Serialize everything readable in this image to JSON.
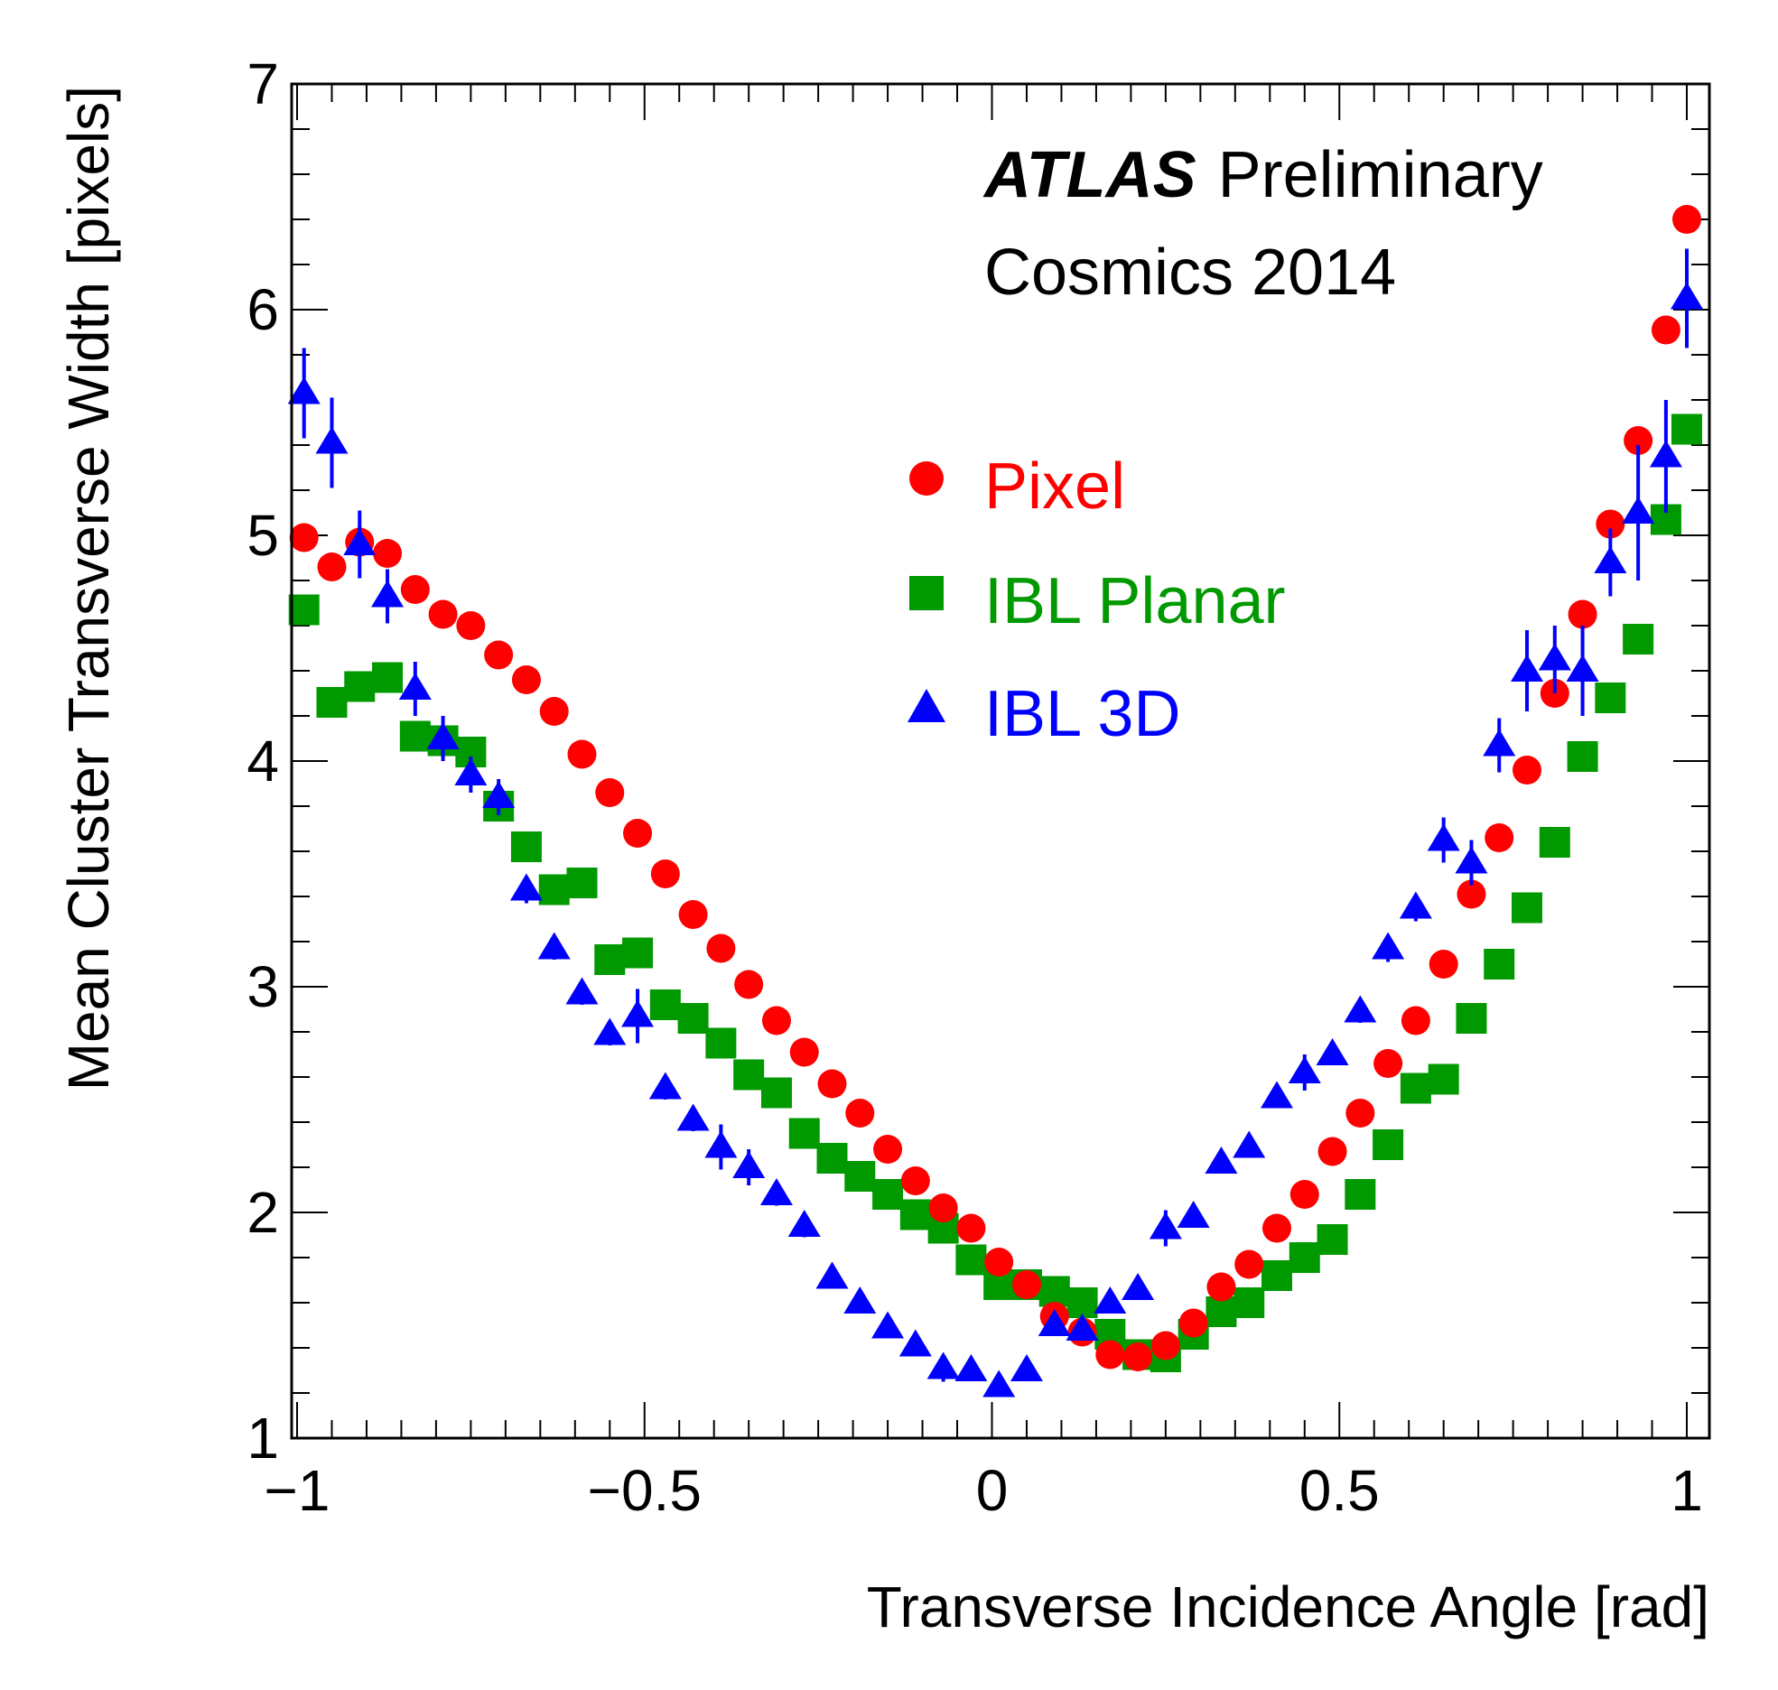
{
  "chart_data": {
    "type": "scatter",
    "xlabel": "Transverse Incidence Angle [rad]",
    "ylabel": "Mean Cluster Transverse Width [pixels]",
    "xlim": [
      -1.0,
      1.0
    ],
    "ylim": [
      1,
      7
    ],
    "x_ticks": [
      -1,
      -0.5,
      0,
      0.5,
      1
    ],
    "x_tick_labels": [
      "−1",
      "−0.5",
      "0",
      "0.5",
      "1"
    ],
    "y_ticks": [
      1,
      2,
      3,
      4,
      5,
      6,
      7
    ],
    "y_tick_labels": [
      "1",
      "2",
      "3",
      "4",
      "5",
      "6",
      "7"
    ],
    "annotation": {
      "experiment": "ATLAS",
      "status": "Preliminary",
      "dataset": "Cosmics 2014"
    },
    "legend_position": "right, upper middle",
    "grid": false,
    "series": [
      {
        "name": "Pixel",
        "marker": "circle",
        "color": "#ff0000",
        "points": [
          [
            -0.99,
            4.99
          ],
          [
            -0.95,
            4.86
          ],
          [
            -0.91,
            4.97
          ],
          [
            -0.87,
            4.92
          ],
          [
            -0.83,
            4.76
          ],
          [
            -0.79,
            4.65
          ],
          [
            -0.75,
            4.6
          ],
          [
            -0.71,
            4.47
          ],
          [
            -0.67,
            4.36
          ],
          [
            -0.63,
            4.22
          ],
          [
            -0.59,
            4.03
          ],
          [
            -0.55,
            3.86
          ],
          [
            -0.51,
            3.68
          ],
          [
            -0.47,
            3.5
          ],
          [
            -0.43,
            3.32
          ],
          [
            -0.39,
            3.17
          ],
          [
            -0.35,
            3.01
          ],
          [
            -0.31,
            2.85
          ],
          [
            -0.27,
            2.71
          ],
          [
            -0.23,
            2.57
          ],
          [
            -0.19,
            2.44
          ],
          [
            -0.15,
            2.28
          ],
          [
            -0.11,
            2.14
          ],
          [
            -0.07,
            2.02
          ],
          [
            -0.03,
            1.93
          ],
          [
            0.01,
            1.78
          ],
          [
            0.05,
            1.68
          ],
          [
            0.09,
            1.54
          ],
          [
            0.13,
            1.47
          ],
          [
            0.17,
            1.37
          ],
          [
            0.21,
            1.36
          ],
          [
            0.25,
            1.41
          ],
          [
            0.29,
            1.51
          ],
          [
            0.33,
            1.67
          ],
          [
            0.37,
            1.77
          ],
          [
            0.41,
            1.93
          ],
          [
            0.45,
            2.08
          ],
          [
            0.49,
            2.27
          ],
          [
            0.53,
            2.44
          ],
          [
            0.57,
            2.66
          ],
          [
            0.61,
            2.85
          ],
          [
            0.65,
            3.1
          ],
          [
            0.69,
            3.41
          ],
          [
            0.73,
            3.66
          ],
          [
            0.77,
            3.96
          ],
          [
            0.81,
            4.3
          ],
          [
            0.85,
            4.65
          ],
          [
            0.89,
            5.05
          ],
          [
            0.93,
            5.42
          ],
          [
            0.97,
            5.91
          ],
          [
            1.0,
            6.4
          ]
        ]
      },
      {
        "name": "IBL Planar",
        "marker": "square",
        "color": "#009900",
        "points": [
          [
            -0.99,
            4.67
          ],
          [
            -0.95,
            4.26
          ],
          [
            -0.91,
            4.33
          ],
          [
            -0.87,
            4.37
          ],
          [
            -0.83,
            4.11
          ],
          [
            -0.79,
            4.09
          ],
          [
            -0.75,
            4.04
          ],
          [
            -0.71,
            3.8
          ],
          [
            -0.67,
            3.62
          ],
          [
            -0.63,
            3.43
          ],
          [
            -0.59,
            3.46
          ],
          [
            -0.55,
            3.12
          ],
          [
            -0.51,
            3.15
          ],
          [
            -0.47,
            2.92
          ],
          [
            -0.43,
            2.86
          ],
          [
            -0.39,
            2.75
          ],
          [
            -0.35,
            2.61
          ],
          [
            -0.31,
            2.53
          ],
          [
            -0.27,
            2.35
          ],
          [
            -0.23,
            2.24
          ],
          [
            -0.19,
            2.16
          ],
          [
            -0.15,
            2.08
          ],
          [
            -0.11,
            1.99
          ],
          [
            -0.07,
            1.93
          ],
          [
            -0.03,
            1.79
          ],
          [
            0.01,
            1.68
          ],
          [
            0.05,
            1.68
          ],
          [
            0.09,
            1.65
          ],
          [
            0.13,
            1.6
          ],
          [
            0.17,
            1.46
          ],
          [
            0.21,
            1.37
          ],
          [
            0.25,
            1.36
          ],
          [
            0.29,
            1.46
          ],
          [
            0.33,
            1.56
          ],
          [
            0.37,
            1.6
          ],
          [
            0.41,
            1.72
          ],
          [
            0.45,
            1.8
          ],
          [
            0.49,
            1.88
          ],
          [
            0.53,
            2.08
          ],
          [
            0.57,
            2.3
          ],
          [
            0.61,
            2.55
          ],
          [
            0.65,
            2.59
          ],
          [
            0.69,
            2.86
          ],
          [
            0.73,
            3.1
          ],
          [
            0.77,
            3.35
          ],
          [
            0.81,
            3.64
          ],
          [
            0.85,
            4.02
          ],
          [
            0.89,
            4.28
          ],
          [
            0.93,
            4.54
          ],
          [
            0.97,
            5.07
          ],
          [
            1.0,
            5.47
          ]
        ]
      },
      {
        "name": "IBL 3D",
        "marker": "triangle",
        "color": "#0000ff",
        "points": [
          [
            -0.99,
            5.63
          ],
          [
            -0.95,
            5.41
          ],
          [
            -0.91,
            4.96
          ],
          [
            -0.87,
            4.73
          ],
          [
            -0.83,
            4.32
          ],
          [
            -0.79,
            4.1
          ],
          [
            -0.75,
            3.94
          ],
          [
            -0.71,
            3.84
          ],
          [
            -0.67,
            3.43
          ],
          [
            -0.63,
            3.17
          ],
          [
            -0.59,
            2.97
          ],
          [
            -0.55,
            2.79
          ],
          [
            -0.51,
            2.87
          ],
          [
            -0.47,
            2.55
          ],
          [
            -0.43,
            2.41
          ],
          [
            -0.39,
            2.29
          ],
          [
            -0.35,
            2.2
          ],
          [
            -0.31,
            2.08
          ],
          [
            -0.27,
            1.94
          ],
          [
            -0.23,
            1.71
          ],
          [
            -0.19,
            1.6
          ],
          [
            -0.15,
            1.49
          ],
          [
            -0.11,
            1.41
          ],
          [
            -0.07,
            1.31
          ],
          [
            -0.03,
            1.3
          ],
          [
            0.01,
            1.23
          ],
          [
            0.05,
            1.3
          ],
          [
            0.09,
            1.5
          ],
          [
            0.13,
            1.48
          ],
          [
            0.17,
            1.6
          ],
          [
            0.21,
            1.66
          ],
          [
            0.25,
            1.93
          ],
          [
            0.29,
            1.98
          ],
          [
            0.33,
            2.22
          ],
          [
            0.37,
            2.29
          ],
          [
            0.41,
            2.51
          ],
          [
            0.45,
            2.62
          ],
          [
            0.49,
            2.7
          ],
          [
            0.53,
            2.89
          ],
          [
            0.57,
            3.17
          ],
          [
            0.61,
            3.35
          ],
          [
            0.65,
            3.65
          ],
          [
            0.69,
            3.55
          ],
          [
            0.73,
            4.07
          ],
          [
            0.77,
            4.4
          ],
          [
            0.81,
            4.45
          ],
          [
            0.85,
            4.4
          ],
          [
            0.89,
            4.88
          ],
          [
            0.93,
            5.1
          ],
          [
            0.97,
            5.35
          ],
          [
            1.0,
            6.05
          ]
        ],
        "errors": [
          0.2,
          0.2,
          0.15,
          0.12,
          0.12,
          0.1,
          0.08,
          0.08,
          0.06,
          0.05,
          0.05,
          0.05,
          0.12,
          0.05,
          0.05,
          0.1,
          0.08,
          0.05,
          0.05,
          0.04,
          0.04,
          0.04,
          0.04,
          0.06,
          0.04,
          0.04,
          0.04,
          0.04,
          0.04,
          0.04,
          0.04,
          0.08,
          0.04,
          0.04,
          0.04,
          0.04,
          0.08,
          0.04,
          0.05,
          0.06,
          0.06,
          0.1,
          0.1,
          0.12,
          0.18,
          0.15,
          0.2,
          0.15,
          0.3,
          0.25,
          0.22
        ]
      }
    ]
  }
}
